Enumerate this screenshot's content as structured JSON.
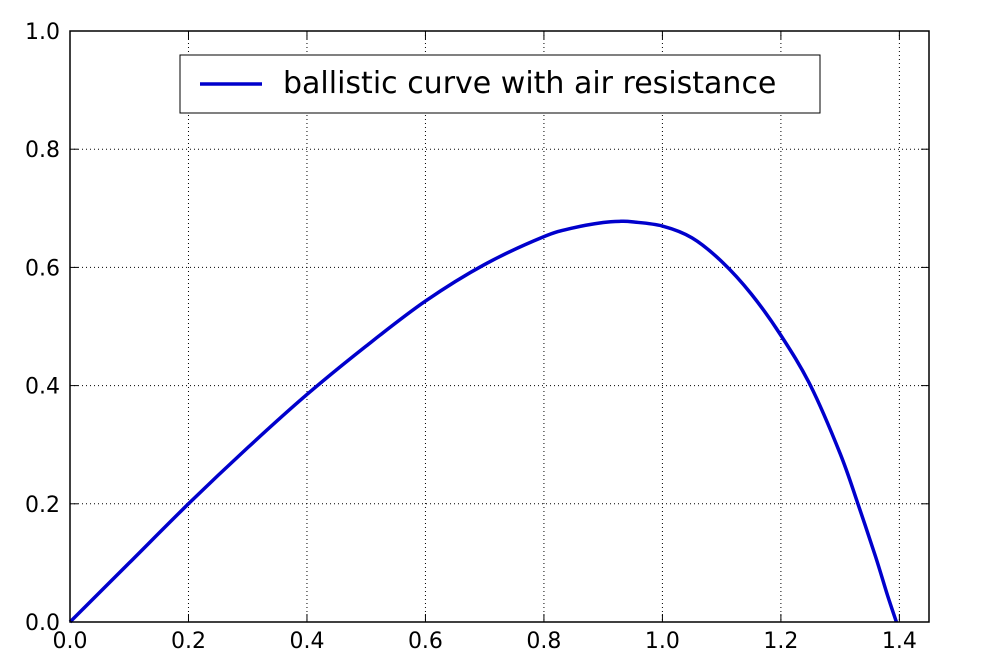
{
  "chart_data": {
    "type": "line",
    "title": "",
    "xlabel": "",
    "ylabel": "",
    "xlim": [
      0.0,
      1.45
    ],
    "ylim": [
      0.0,
      1.0
    ],
    "x_ticks": [
      0.0,
      0.2,
      0.4,
      0.6,
      0.8,
      1.0,
      1.2,
      1.4
    ],
    "x_tick_labels": [
      "0.0",
      "0.2",
      "0.4",
      "0.6",
      "0.8",
      "1.0",
      "1.2",
      "1.4"
    ],
    "y_ticks": [
      0.0,
      0.2,
      0.4,
      0.6,
      0.8,
      1.0
    ],
    "y_tick_labels": [
      "0.0",
      "0.2",
      "0.4",
      "0.6",
      "0.8",
      "1.0"
    ],
    "grid": true,
    "legend_position": "top-center",
    "series": [
      {
        "name": "ballistic curve with air resistance",
        "color": "#0000cc",
        "x": [
          0.0,
          0.1,
          0.2,
          0.3,
          0.4,
          0.5,
          0.6,
          0.7,
          0.8,
          0.85,
          0.9,
          0.93,
          0.95,
          1.0,
          1.05,
          1.1,
          1.15,
          1.2,
          1.25,
          1.3,
          1.33,
          1.36,
          1.38,
          1.395
        ],
        "y": [
          0.0,
          0.1,
          0.2,
          0.295,
          0.385,
          0.467,
          0.543,
          0.605,
          0.652,
          0.667,
          0.676,
          0.678,
          0.677,
          0.67,
          0.65,
          0.61,
          0.555,
          0.485,
          0.4,
          0.285,
          0.2,
          0.11,
          0.045,
          0.0
        ]
      }
    ]
  }
}
